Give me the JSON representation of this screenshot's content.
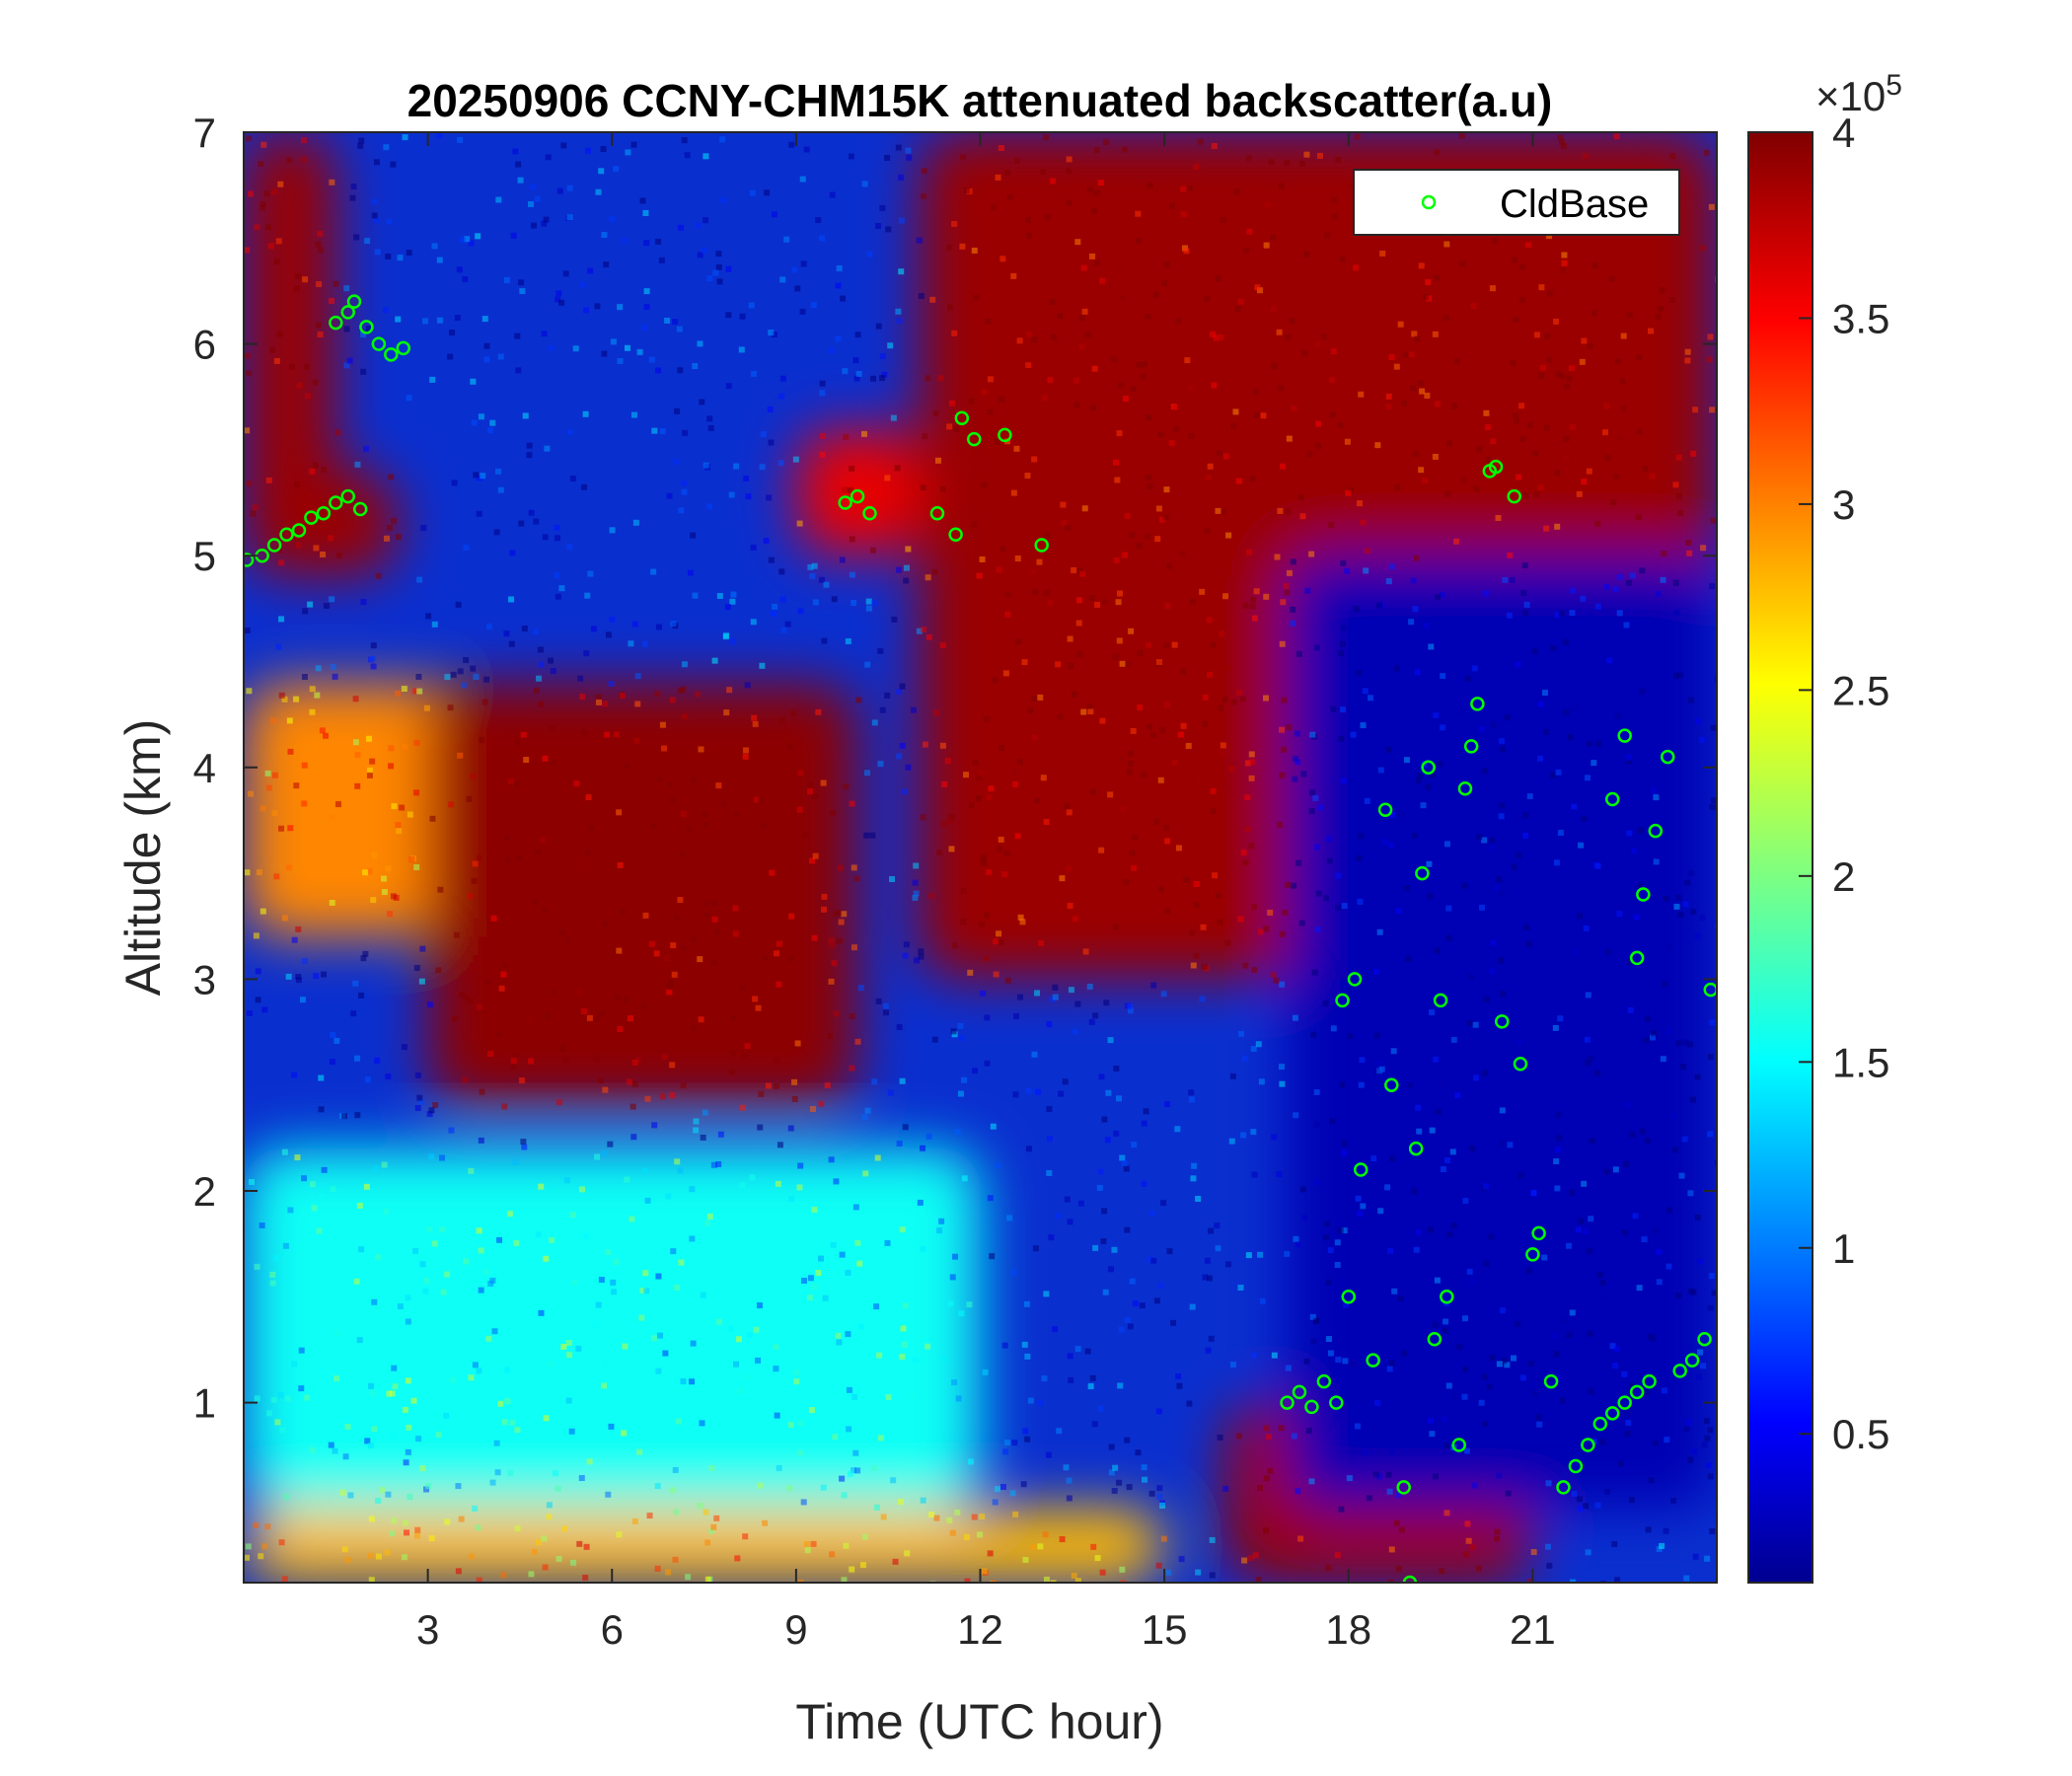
{
  "chart_data": {
    "type": "heatmap",
    "title": "20250906 CCNY-CHM15K attenuated backscatter(a.u)",
    "xlabel": "Time (UTC hour)",
    "ylabel": "Altitude (km)",
    "xlim": [
      0,
      24
    ],
    "ylim": [
      0.15,
      7
    ],
    "xticks": [
      3,
      6,
      9,
      12,
      15,
      18,
      21
    ],
    "xtick_labels": [
      "3",
      "6",
      "9",
      "12",
      "15",
      "18",
      "21"
    ],
    "yticks": [
      1,
      2,
      3,
      4,
      5,
      6,
      7
    ],
    "ytick_labels": [
      "1",
      "2",
      "3",
      "4",
      "5",
      "6",
      "7"
    ],
    "colorbar": {
      "range": [
        10000,
        400000
      ],
      "ticks": [
        0.5,
        1,
        1.5,
        2,
        2.5,
        3,
        3.5,
        4
      ],
      "tick_labels": [
        "0.5",
        "1",
        "1.5",
        "2",
        "2.5",
        "3",
        "3.5",
        "4"
      ],
      "multiplier_base": "×10",
      "multiplier_exp": "5",
      "colormap": "jet"
    },
    "regions": [
      {
        "t": [
          0,
          1.5
        ],
        "z": [
          5.0,
          7.0
        ],
        "level": 3.9
      },
      {
        "t": [
          0,
          2.5
        ],
        "z": [
          4.9,
          5.4
        ],
        "level": 3.9
      },
      {
        "t": [
          0,
          4
        ],
        "z": [
          3.2,
          4.4
        ],
        "level": 3.0
      },
      {
        "t": [
          3,
          10
        ],
        "z": [
          2.4,
          4.4
        ],
        "level": 3.95
      },
      {
        "t": [
          9,
          11
        ],
        "z": [
          5.0,
          5.6
        ],
        "level": 3.6
      },
      {
        "t": [
          11,
          24
        ],
        "z": [
          3.0,
          7.0
        ],
        "level": 3.9
      },
      {
        "t": [
          0,
          12
        ],
        "z": [
          0.5,
          2.2
        ],
        "level": 1.6
      },
      {
        "t": [
          0,
          15
        ],
        "z": [
          0.15,
          0.5
        ],
        "level": 2.8
      },
      {
        "t": [
          16,
          21
        ],
        "z": [
          0.15,
          1.0
        ],
        "level": 3.9
      },
      {
        "t": [
          17,
          24
        ],
        "z": [
          0.5,
          5.0
        ],
        "level": 0.3
      }
    ],
    "series": [
      {
        "name": "CldBase",
        "type": "scatter",
        "color": "#00ff00",
        "marker": "circle-open",
        "points": [
          [
            0.05,
            4.98
          ],
          [
            0.3,
            5.0
          ],
          [
            0.5,
            5.05
          ],
          [
            0.7,
            5.1
          ],
          [
            0.9,
            5.12
          ],
          [
            1.1,
            5.18
          ],
          [
            1.3,
            5.2
          ],
          [
            1.5,
            5.25
          ],
          [
            1.7,
            5.28
          ],
          [
            1.9,
            5.22
          ],
          [
            1.5,
            6.1
          ],
          [
            1.7,
            6.15
          ],
          [
            1.8,
            6.2
          ],
          [
            2.0,
            6.08
          ],
          [
            2.2,
            6.0
          ],
          [
            2.4,
            5.95
          ],
          [
            2.6,
            5.98
          ],
          [
            9.8,
            5.25
          ],
          [
            10.0,
            5.28
          ],
          [
            10.2,
            5.2
          ],
          [
            11.3,
            5.2
          ],
          [
            11.6,
            5.1
          ],
          [
            11.7,
            5.65
          ],
          [
            11.9,
            5.55
          ],
          [
            12.4,
            5.57
          ],
          [
            13.0,
            5.05
          ],
          [
            17.0,
            1.0
          ],
          [
            17.2,
            1.05
          ],
          [
            17.4,
            0.98
          ],
          [
            17.6,
            1.1
          ],
          [
            17.8,
            1.0
          ],
          [
            17.9,
            2.9
          ],
          [
            18.1,
            3.0
          ],
          [
            18.0,
            1.5
          ],
          [
            18.2,
            2.1
          ],
          [
            18.4,
            1.2
          ],
          [
            18.6,
            3.8
          ],
          [
            18.7,
            2.5
          ],
          [
            18.9,
            0.6
          ],
          [
            19.0,
            0.15
          ],
          [
            19.1,
            2.2
          ],
          [
            19.2,
            3.5
          ],
          [
            19.3,
            4.0
          ],
          [
            19.4,
            1.3
          ],
          [
            19.5,
            2.9
          ],
          [
            19.6,
            1.5
          ],
          [
            19.8,
            0.8
          ],
          [
            19.9,
            3.9
          ],
          [
            20.0,
            4.1
          ],
          [
            20.1,
            4.3
          ],
          [
            20.3,
            5.4
          ],
          [
            20.4,
            5.42
          ],
          [
            20.5,
            2.8
          ],
          [
            20.7,
            5.28
          ],
          [
            20.8,
            2.6
          ],
          [
            21.0,
            1.7
          ],
          [
            21.1,
            1.8
          ],
          [
            21.3,
            1.1
          ],
          [
            21.5,
            0.6
          ],
          [
            21.7,
            0.7
          ],
          [
            21.9,
            0.8
          ],
          [
            22.1,
            0.9
          ],
          [
            22.3,
            0.95
          ],
          [
            22.5,
            1.0
          ],
          [
            22.7,
            1.05
          ],
          [
            22.9,
            1.1
          ],
          [
            22.3,
            3.85
          ],
          [
            22.5,
            4.15
          ],
          [
            22.7,
            3.1
          ],
          [
            22.8,
            3.4
          ],
          [
            23.0,
            3.7
          ],
          [
            23.2,
            4.05
          ],
          [
            23.4,
            1.15
          ],
          [
            23.6,
            1.2
          ],
          [
            23.8,
            1.3
          ],
          [
            23.9,
            2.95
          ]
        ]
      }
    ],
    "legend": {
      "position": "top-right",
      "entries": [
        "CldBase"
      ]
    }
  }
}
